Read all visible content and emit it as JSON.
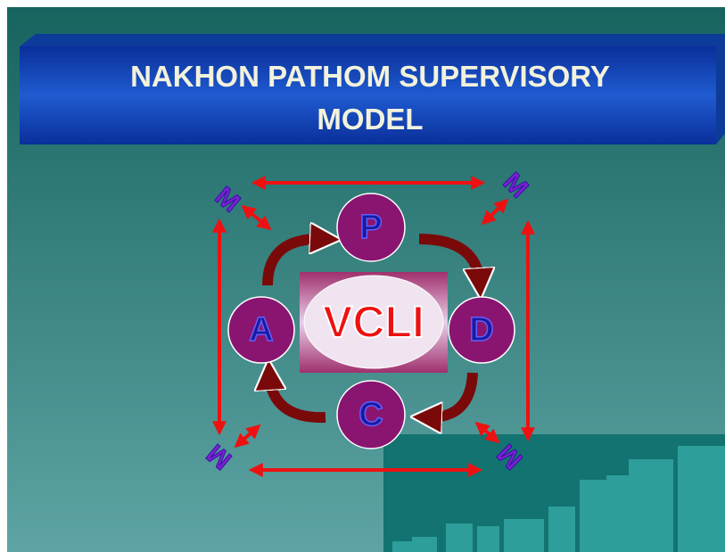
{
  "title_lines": [
    "NAKHON  PATHOM  SUPERVISORY",
    "MODEL"
  ],
  "center": "VCLI",
  "nodes": [
    "P",
    "D",
    "C",
    "A"
  ],
  "corners": [
    "M",
    "M",
    "M",
    "M"
  ]
}
